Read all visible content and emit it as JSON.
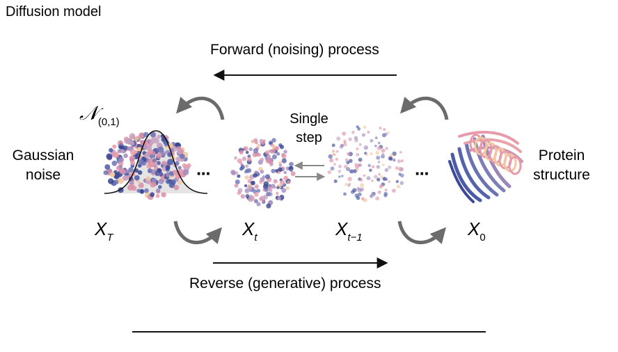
{
  "title": "Diffusion model",
  "forward_label": "Forward (noising) process",
  "reverse_label": "Reverse (generative) process",
  "single_step": [
    "Single",
    "step"
  ],
  "gaussian_noise": [
    "Gaussian",
    "noise"
  ],
  "protein_structure": [
    "Protein",
    "structure"
  ],
  "normal_dist": {
    "symbol": "𝒩",
    "params": "(0,1)"
  },
  "ellipsis": "···",
  "states": [
    {
      "var": "X",
      "sub": "T"
    },
    {
      "var": "X",
      "sub": "t"
    },
    {
      "var": "X",
      "sub": "t−1"
    },
    {
      "var": "X",
      "sub": "0"
    }
  ],
  "colors": {
    "arrow": "#111111",
    "curved_arrow": "#6b6b6b",
    "small_arrow": "#888888",
    "blue": "#4b5aa6",
    "pink": "#e79aa9",
    "peach": "#f2c7a0",
    "lavender": "#9f8bc0"
  }
}
